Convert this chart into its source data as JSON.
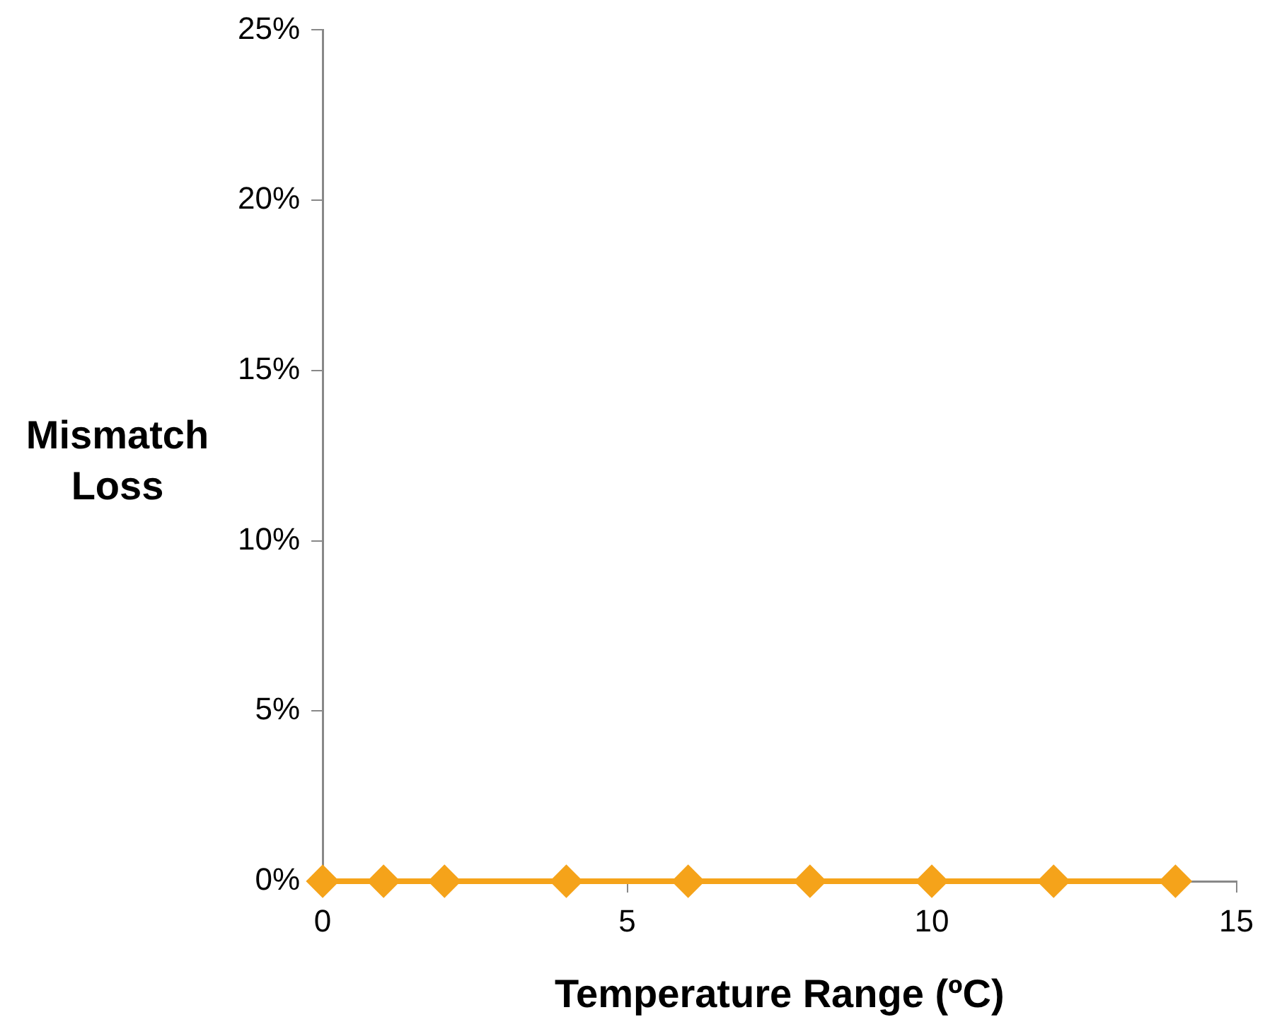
{
  "chart_data": {
    "type": "line",
    "xlabel": "Temperature Range (ºC)",
    "ylabel": "Mismatch Loss",
    "x": [
      0,
      1,
      2,
      4,
      6,
      8,
      10,
      12,
      14
    ],
    "series": [
      {
        "color": "#f5a31a",
        "values": [
          0,
          0,
          0,
          0,
          0,
          0,
          0,
          0,
          0
        ]
      }
    ],
    "xlim": [
      0,
      15
    ],
    "xticks": [
      0,
      5,
      10,
      15
    ],
    "ylim": [
      0,
      25
    ],
    "yticks": [
      {
        "value": 0,
        "label": "0%"
      },
      {
        "value": 5,
        "label": "5%"
      },
      {
        "value": 10,
        "label": "10%"
      },
      {
        "value": 15,
        "label": "15%"
      },
      {
        "value": 20,
        "label": "20%"
      },
      {
        "value": 25,
        "label": "25%"
      }
    ],
    "grid": false,
    "legend": false,
    "marker": "diamond",
    "line_style": "solid"
  }
}
